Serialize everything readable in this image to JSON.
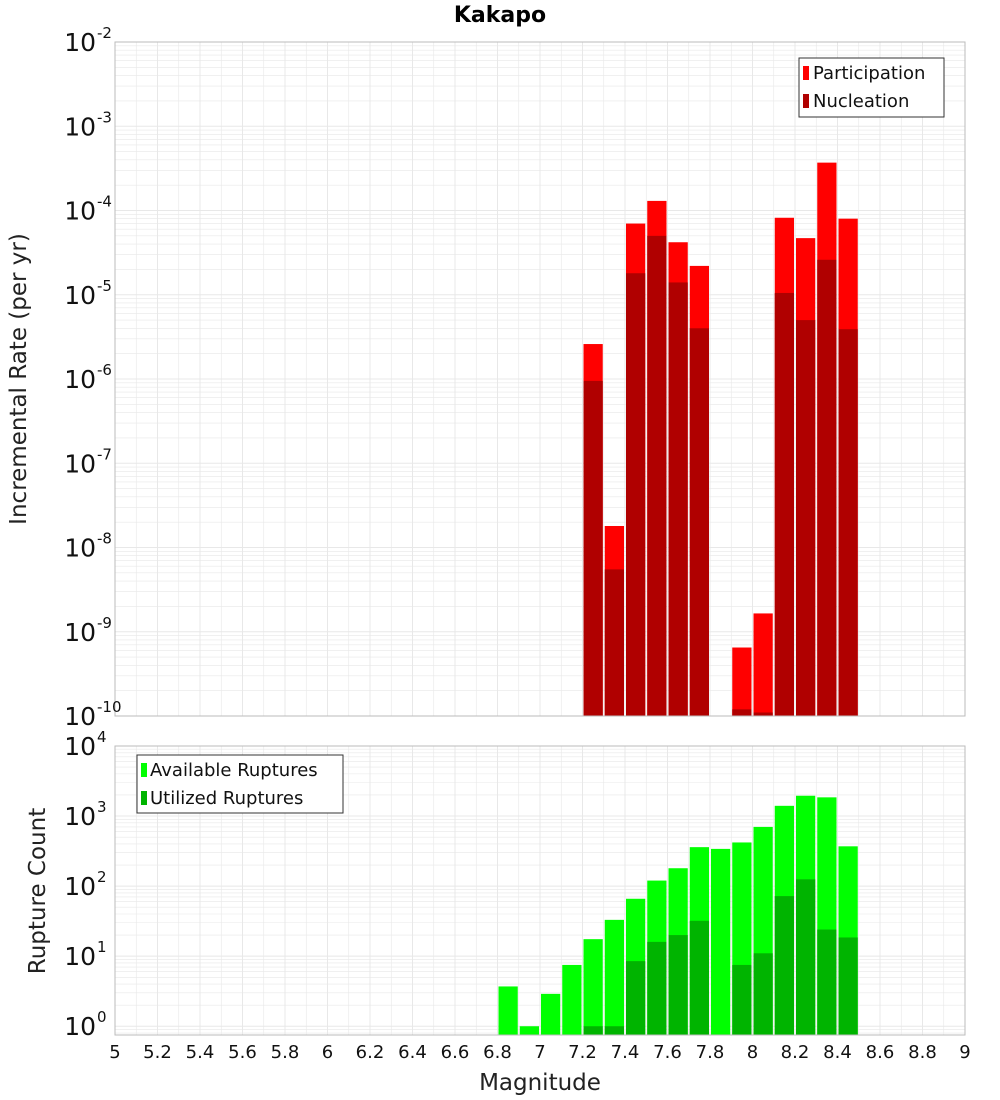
{
  "colors": {
    "participation": "#ff0000",
    "nucleation": "#b00000",
    "available": "#00ff00",
    "utilized": "#00b400",
    "grid": "#e8e8e8",
    "frame": "#bbbbbb"
  },
  "chart_data": [
    {
      "type": "bar",
      "scale": "log",
      "title": "Kakapo",
      "xlabel": "Magnitude",
      "ylabel": "Incremental Rate (per yr)",
      "xlim": [
        5,
        9
      ],
      "ylim": [
        1e-10,
        0.01
      ],
      "bin_width": 0.1,
      "yticks": [
        {
          "base": "10",
          "exp": "-2"
        },
        {
          "base": "10",
          "exp": "-3"
        },
        {
          "base": "10",
          "exp": "-4"
        },
        {
          "base": "10",
          "exp": "-5"
        },
        {
          "base": "10",
          "exp": "-6"
        },
        {
          "base": "10",
          "exp": "-7"
        },
        {
          "base": "10",
          "exp": "-8"
        },
        {
          "base": "10",
          "exp": "-9"
        },
        {
          "base": "10",
          "exp": "-10"
        }
      ],
      "legend": [
        "Participation",
        "Nucleation"
      ],
      "series": [
        {
          "name": "Participation",
          "x": [
            7.25,
            7.35,
            7.45,
            7.55,
            7.65,
            7.75,
            7.95,
            8.05,
            8.15,
            8.25,
            8.35,
            8.45
          ],
          "values": [
            2.6e-06,
            1.8e-08,
            7e-05,
            0.00013,
            4.2e-05,
            2.2e-05,
            6.5e-10,
            1.65e-09,
            8.2e-05,
            4.7e-05,
            0.00037,
            8e-05
          ]
        },
        {
          "name": "Nucleation",
          "x": [
            7.25,
            7.35,
            7.45,
            7.55,
            7.65,
            7.75,
            7.95,
            8.05,
            8.15,
            8.25,
            8.35,
            8.45
          ],
          "values": [
            9.5e-07,
            5.5e-09,
            1.8e-05,
            5e-05,
            1.4e-05,
            4e-06,
            1.2e-10,
            1.1e-10,
            1.05e-05,
            5e-06,
            2.6e-05,
            3.9e-06
          ]
        }
      ]
    },
    {
      "type": "bar",
      "scale": "log",
      "xlabel": "Magnitude",
      "ylabel": "Rupture Count",
      "xlim": [
        5,
        9
      ],
      "ylim": [
        0.75,
        10000
      ],
      "bin_width": 0.1,
      "xticks": [
        "5",
        "5.2",
        "5.4",
        "5.6",
        "5.8",
        "6",
        "6.2",
        "6.4",
        "6.6",
        "6.8",
        "7",
        "7.2",
        "7.4",
        "7.6",
        "7.8",
        "8",
        "8.2",
        "8.4",
        "8.6",
        "8.8",
        "9"
      ],
      "yticks": [
        {
          "base": "10",
          "exp": "4"
        },
        {
          "base": "10",
          "exp": "3"
        },
        {
          "base": "10",
          "exp": "2"
        },
        {
          "base": "10",
          "exp": "1"
        },
        {
          "base": "10",
          "exp": "0"
        }
      ],
      "legend": [
        "Available Ruptures",
        "Utilized Ruptures"
      ],
      "series": [
        {
          "name": "Available Ruptures",
          "x": [
            6.85,
            6.95,
            7.05,
            7.15,
            7.25,
            7.35,
            7.45,
            7.55,
            7.65,
            7.75,
            7.85,
            7.95,
            8.05,
            8.15,
            8.25,
            8.35,
            8.45
          ],
          "values": [
            3.7,
            1.0,
            2.9,
            7.5,
            17.5,
            33,
            66,
            120,
            180,
            360,
            340,
            420,
            700,
            1400,
            1950,
            1850,
            370
          ]
        },
        {
          "name": "Utilized Ruptures",
          "x": [
            7.25,
            7.35,
            7.45,
            7.55,
            7.65,
            7.75,
            7.95,
            8.05,
            8.15,
            8.25,
            8.35,
            8.45
          ],
          "values": [
            1.0,
            1.0,
            8.5,
            16,
            20,
            32,
            7.5,
            11,
            72,
            125,
            24,
            18.5
          ]
        }
      ]
    }
  ]
}
